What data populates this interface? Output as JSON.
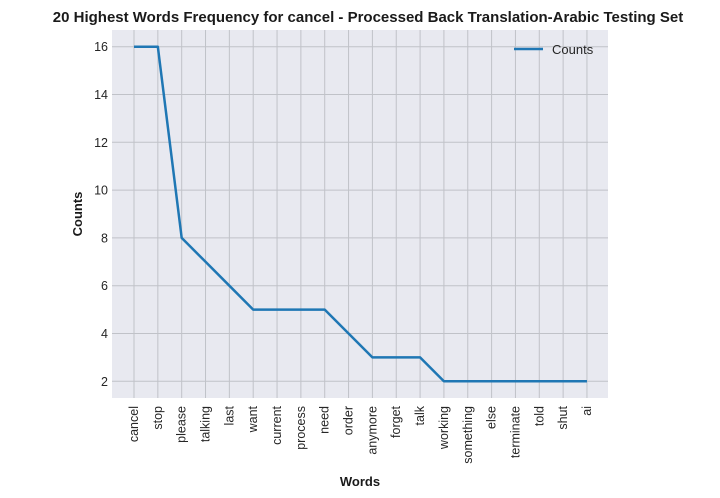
{
  "chart_data": {
    "type": "line",
    "title": "20 Highest Words Frequency for cancel - Processed Back Translation-Arabic Testing Set",
    "xlabel": "Words",
    "ylabel": "Counts",
    "categories": [
      "cancel",
      "stop",
      "please",
      "talking",
      "last",
      "want",
      "current",
      "process",
      "need",
      "order",
      "anymore",
      "forget",
      "talk",
      "working",
      "something",
      "else",
      "terminate",
      "told",
      "shut",
      "ai"
    ],
    "series": [
      {
        "name": "Counts",
        "values": [
          16,
          16,
          8,
          7,
          6,
          5,
          5,
          5,
          5,
          4,
          3,
          3,
          3,
          2,
          2,
          2,
          2,
          2,
          2,
          2
        ],
        "color": "#1f77b4"
      }
    ],
    "yticks": [
      2,
      4,
      6,
      8,
      10,
      12,
      14,
      16
    ],
    "ylim": [
      1.3,
      16.7
    ],
    "grid": true,
    "legend": "top-right",
    "background": "#e8e9f0",
    "grid_color": "#c0c2c8"
  }
}
